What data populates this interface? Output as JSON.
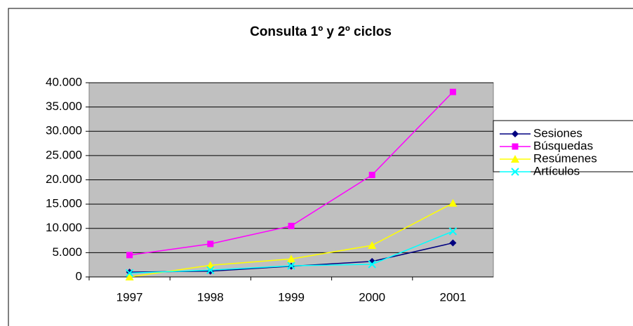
{
  "chart_data": {
    "type": "line",
    "title": "Consulta 1º y 2º ciclos",
    "categories": [
      "1997",
      "1998",
      "1999",
      "2000",
      "2001"
    ],
    "series": [
      {
        "name": "Sesiones",
        "color": "#000080",
        "marker": "diamond",
        "values": [
          1000,
          1200,
          2200,
          3200,
          7000
        ]
      },
      {
        "name": "Búsquedas",
        "color": "#ff00ff",
        "marker": "square",
        "values": [
          4500,
          6800,
          10500,
          21000,
          38100
        ]
      },
      {
        "name": "Resúmenes",
        "color": "#ffff00",
        "marker": "triangle",
        "values": [
          0,
          2400,
          3700,
          6500,
          15200
        ]
      },
      {
        "name": "Artículos",
        "color": "#00ffff",
        "marker": "x",
        "values": [
          800,
          1400,
          2300,
          2600,
          9400
        ]
      }
    ],
    "ylim": [
      0,
      40000
    ],
    "yticks": [
      {
        "value": 0,
        "label": "0"
      },
      {
        "value": 5000,
        "label": "5.000"
      },
      {
        "value": 10000,
        "label": "10.000"
      },
      {
        "value": 15000,
        "label": "15.000"
      },
      {
        "value": 20000,
        "label": "20.000"
      },
      {
        "value": 25000,
        "label": "25.000"
      },
      {
        "value": 30000,
        "label": "30.000"
      },
      {
        "value": 35000,
        "label": "35.000"
      },
      {
        "value": 40000,
        "label": "40.000"
      }
    ],
    "grid": true,
    "legend": "right"
  }
}
